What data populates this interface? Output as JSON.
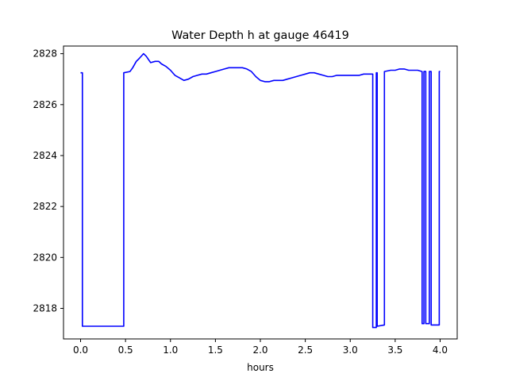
{
  "chart_data": {
    "type": "line",
    "title": "Water Depth h at gauge 46419",
    "xlabel": "hours",
    "ylabel": "",
    "xlim": [
      -0.19,
      4.19
    ],
    "ylim": [
      2816.8,
      2828.3
    ],
    "grid": false,
    "x_ticks": [
      "0.0",
      "0.5",
      "1.0",
      "1.5",
      "2.0",
      "2.5",
      "3.0",
      "3.5",
      "4.0"
    ],
    "y_ticks": [
      "2818",
      "2820",
      "2822",
      "2824",
      "2826",
      "2828"
    ],
    "line_color": "#0000ff",
    "series": [
      {
        "x": [
          0.0,
          0.02,
          0.02,
          0.48,
          0.48,
          0.55,
          0.58,
          0.62,
          0.65,
          0.7,
          0.73,
          0.78,
          0.83,
          0.87,
          0.9,
          0.95,
          1.0,
          1.05,
          1.1,
          1.15,
          1.2,
          1.25,
          1.3,
          1.35,
          1.4,
          1.45,
          1.5,
          1.55,
          1.6,
          1.65,
          1.7,
          1.75,
          1.8,
          1.85,
          1.9,
          1.95,
          2.0,
          2.05,
          2.1,
          2.15,
          2.2,
          2.25,
          2.3,
          2.35,
          2.4,
          2.45,
          2.5,
          2.55,
          2.6,
          2.65,
          2.7,
          2.75,
          2.8,
          2.85,
          2.9,
          2.95,
          3.0,
          3.05,
          3.1,
          3.15,
          3.2,
          3.25,
          3.25,
          3.29,
          3.29,
          3.3,
          3.3,
          3.38,
          3.38,
          3.45,
          3.5,
          3.55,
          3.6,
          3.65,
          3.7,
          3.75,
          3.8,
          3.8,
          3.82,
          3.82,
          3.84,
          3.84,
          3.88,
          3.88,
          3.9,
          3.9,
          3.99,
          3.99,
          4.0
        ],
        "y": [
          2827.25,
          2827.25,
          2817.3,
          2817.3,
          2827.25,
          2827.3,
          2827.45,
          2827.7,
          2827.8,
          2828.0,
          2827.9,
          2827.65,
          2827.7,
          2827.7,
          2827.6,
          2827.5,
          2827.35,
          2827.15,
          2827.05,
          2826.95,
          2827.0,
          2827.1,
          2827.15,
          2827.2,
          2827.2,
          2827.25,
          2827.3,
          2827.35,
          2827.4,
          2827.45,
          2827.45,
          2827.45,
          2827.45,
          2827.4,
          2827.3,
          2827.1,
          2826.95,
          2826.9,
          2826.9,
          2826.95,
          2826.95,
          2826.95,
          2827.0,
          2827.05,
          2827.1,
          2827.15,
          2827.2,
          2827.25,
          2827.25,
          2827.2,
          2827.15,
          2827.1,
          2827.1,
          2827.15,
          2827.15,
          2827.15,
          2827.15,
          2827.15,
          2827.15,
          2827.2,
          2827.2,
          2827.2,
          2817.25,
          2817.25,
          2827.25,
          2827.25,
          2817.3,
          2817.35,
          2827.3,
          2827.35,
          2827.35,
          2827.4,
          2827.4,
          2827.35,
          2827.35,
          2827.35,
          2827.3,
          2817.4,
          2817.4,
          2827.3,
          2827.3,
          2817.4,
          2817.4,
          2827.3,
          2827.3,
          2817.35,
          2817.35,
          2827.3,
          2827.3
        ]
      }
    ]
  }
}
